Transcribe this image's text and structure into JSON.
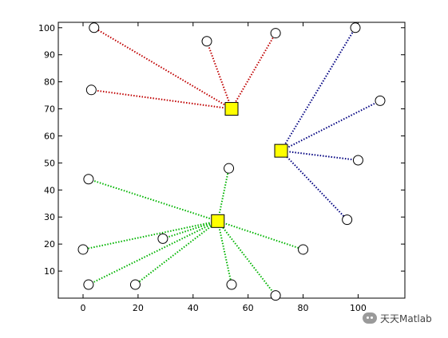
{
  "chart_data": {
    "type": "scatter",
    "title": "",
    "xlabel": "",
    "ylabel": "",
    "xlim": [
      -9,
      117
    ],
    "ylim": [
      0,
      102
    ],
    "xticks": [
      0,
      20,
      40,
      60,
      80,
      100
    ],
    "yticks": [
      10,
      20,
      30,
      40,
      50,
      60,
      70,
      80,
      90,
      100
    ],
    "grid": false,
    "legend": "none",
    "clusters": [
      {
        "color": "#c00000",
        "center": {
          "x": 54,
          "y": 70
        },
        "points": [
          {
            "x": 4,
            "y": 100
          },
          {
            "x": 45,
            "y": 95
          },
          {
            "x": 70,
            "y": 98
          },
          {
            "x": 3,
            "y": 77
          }
        ]
      },
      {
        "color": "#000080",
        "center": {
          "x": 72,
          "y": 54.5
        },
        "points": [
          {
            "x": 99,
            "y": 100
          },
          {
            "x": 108,
            "y": 73
          },
          {
            "x": 100,
            "y": 51
          },
          {
            "x": 96,
            "y": 29
          }
        ]
      },
      {
        "color": "#00b400",
        "center": {
          "x": 49,
          "y": 28.5
        },
        "points": [
          {
            "x": 53,
            "y": 48
          },
          {
            "x": 2,
            "y": 44
          },
          {
            "x": 29,
            "y": 22
          },
          {
            "x": 0,
            "y": 18
          },
          {
            "x": 80,
            "y": 18
          },
          {
            "x": 2,
            "y": 5
          },
          {
            "x": 19,
            "y": 5
          },
          {
            "x": 54,
            "y": 5
          },
          {
            "x": 70,
            "y": 1
          }
        ]
      }
    ]
  },
  "colors": {
    "center_fill": "#ffff00",
    "marker_stroke": "#000000"
  },
  "watermark": {
    "text": "天天Matlab",
    "icon": "wechat-icon"
  }
}
